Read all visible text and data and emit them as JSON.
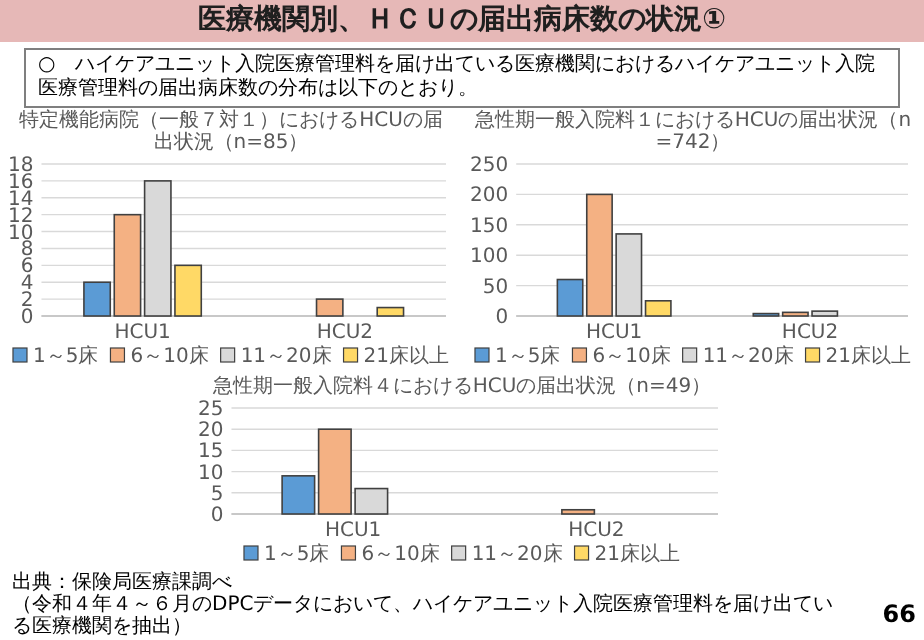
{
  "chart_data": [
    {
      "type": "other",
      "title": "医療機関別、ＨＣＵの届出病床数の状況①",
      "annotations": [
        "○　ハイケアユニット入院医療管理料を届け出ている医療機関におけるハイケアユニット入院医療管理料の届出病床数の分布は以下のとおり。",
        "出典：保険局医療課調べ",
        "（令和４年４～６月のDPCデータにおいて、ハイケアユニット入院医療管理料を届け出ている医療機関を抽出）",
        "66"
      ]
    },
    {
      "type": "bar",
      "title": "特定機能病院（一般７対１）におけるHCUの届出状況（n=85）",
      "categories": [
        "HCU1",
        "HCU2"
      ],
      "ylim": [
        0,
        18
      ],
      "yticks": [
        0,
        2,
        4,
        6,
        8,
        10,
        12,
        14,
        16,
        18
      ],
      "grid": "y",
      "legend": "bottom",
      "series": [
        {
          "name": "1～5床",
          "color": "#5b9bd5",
          "values": [
            4,
            0
          ]
        },
        {
          "name": "6～10床",
          "color": "#f4b183",
          "values": [
            12,
            2
          ]
        },
        {
          "name": "11～20床",
          "color": "#d9d9d9",
          "values": [
            16,
            0
          ]
        },
        {
          "name": "21床以上",
          "color": "#ffd966",
          "values": [
            6,
            1
          ]
        }
      ]
    },
    {
      "type": "bar",
      "title": "急性期一般入院料１におけるHCUの届出状況（n=742）",
      "categories": [
        "HCU1",
        "HCU2"
      ],
      "ylim": [
        0,
        250
      ],
      "yticks": [
        0,
        50,
        100,
        150,
        200,
        250
      ],
      "grid": "y",
      "legend": "bottom",
      "series": [
        {
          "name": "1～5床",
          "color": "#5b9bd5",
          "values": [
            60,
            4
          ]
        },
        {
          "name": "6～10床",
          "color": "#f4b183",
          "values": [
            200,
            6
          ]
        },
        {
          "name": "11～20床",
          "color": "#d9d9d9",
          "values": [
            135,
            8
          ]
        },
        {
          "name": "21床以上",
          "color": "#ffd966",
          "values": [
            25,
            0
          ]
        }
      ]
    },
    {
      "type": "bar",
      "title": "急性期一般入院料４におけるHCUの届出状況（n=49）",
      "categories": [
        "HCU1",
        "HCU2"
      ],
      "ylim": [
        0,
        25
      ],
      "yticks": [
        0,
        5,
        10,
        15,
        20,
        25
      ],
      "grid": "y",
      "legend": "bottom",
      "series": [
        {
          "name": "1～5床",
          "color": "#5b9bd5",
          "values": [
            9,
            0
          ]
        },
        {
          "name": "6～10床",
          "color": "#f4b183",
          "values": [
            20,
            1
          ]
        },
        {
          "name": "11～20床",
          "color": "#d9d9d9",
          "values": [
            6,
            0
          ]
        },
        {
          "name": "21床以上",
          "color": "#ffd966",
          "values": [
            0,
            0
          ]
        }
      ]
    }
  ]
}
